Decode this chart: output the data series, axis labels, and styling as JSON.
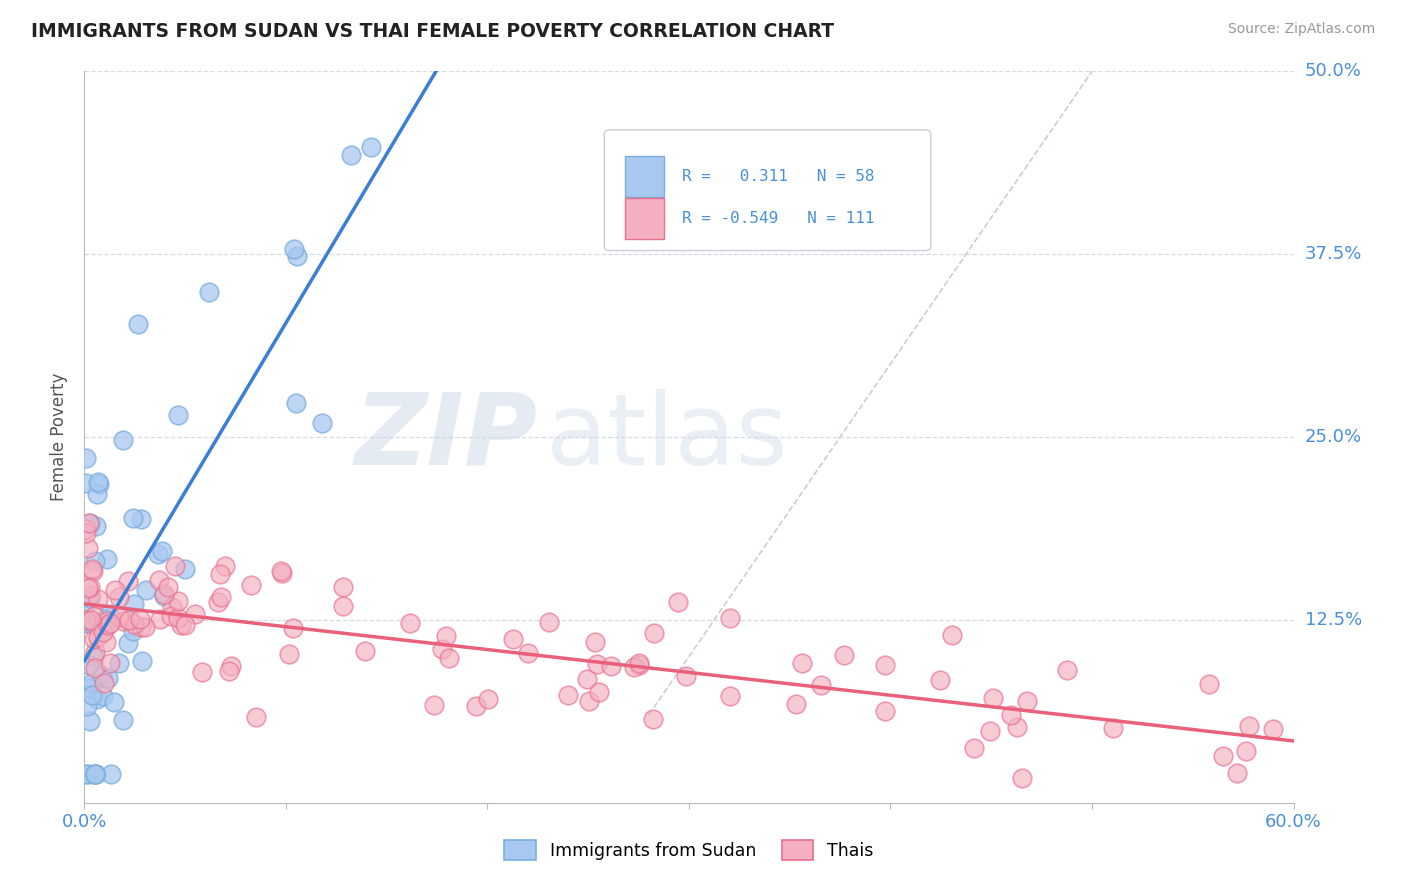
{
  "title": "IMMIGRANTS FROM SUDAN VS THAI FEMALE POVERTY CORRELATION CHART",
  "source": "Source: ZipAtlas.com",
  "ylabel": "Female Poverty",
  "xlim": [
    0.0,
    0.6
  ],
  "ylim": [
    0.0,
    0.5
  ],
  "xticks": [
    0.0,
    0.1,
    0.2,
    0.3,
    0.4,
    0.5,
    0.6
  ],
  "yticks": [
    0.0,
    0.125,
    0.25,
    0.375,
    0.5
  ],
  "ytick_labels": [
    "",
    "12.5%",
    "25.0%",
    "37.5%",
    "50.0%"
  ],
  "sudan_color": "#a8c8f0",
  "sudan_edge_color": "#7aaedd",
  "thai_color": "#f4afc0",
  "thai_edge_color": "#e87090",
  "sudan_line_color": "#3a7fd5",
  "thai_line_color": "#e8607a",
  "grid_color": "#d5dce8",
  "tick_color": "#4a90d9",
  "watermark_color": "#ccd8e8",
  "ref_line_color": "#c0c8d8"
}
